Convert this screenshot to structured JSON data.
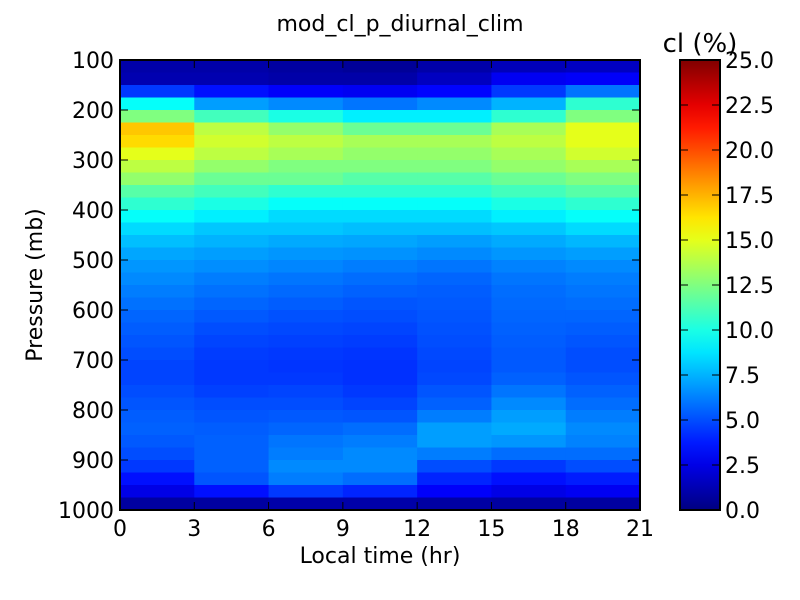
{
  "chart_data": {
    "type": "heatmap",
    "title": "mod_cl_p_diurnal_clim",
    "xlabel": "Local time (hr)",
    "ylabel": "Pressure (mb)",
    "x": [
      0,
      3,
      6,
      9,
      12,
      15,
      18
    ],
    "x_ticks": [
      0,
      3,
      6,
      9,
      12,
      15,
      18,
      21
    ],
    "xlim": [
      0,
      21
    ],
    "ylim": [
      1000,
      100
    ],
    "y_ticks": [
      100,
      200,
      300,
      400,
      500,
      600,
      700,
      800,
      900,
      1000
    ],
    "pressure_levels": [
      100,
      125,
      150,
      175,
      200,
      225,
      250,
      275,
      300,
      325,
      350,
      375,
      400,
      425,
      450,
      475,
      500,
      525,
      550,
      575,
      600,
      625,
      650,
      675,
      700,
      725,
      750,
      775,
      800,
      825,
      850,
      875,
      900,
      925,
      950,
      975
    ],
    "colormap": "jet",
    "colorbar": {
      "label": "cl (%)",
      "range": [
        0,
        25
      ],
      "ticks": [
        "0.0",
        "2.5",
        "5.0",
        "7.5",
        "10.0",
        "12.5",
        "15.0",
        "17.5",
        "20.0",
        "22.5",
        "25.0"
      ]
    },
    "values": [
      [
        1.0,
        1.0,
        0.8,
        0.6,
        1.0,
        1.4,
        1.6
      ],
      [
        1.2,
        1.2,
        1.0,
        1.0,
        1.6,
        2.8,
        3.0
      ],
      [
        4.5,
        3.5,
        3.0,
        2.8,
        3.2,
        4.5,
        6.0
      ],
      [
        9.5,
        7.0,
        6.5,
        6.0,
        6.5,
        7.5,
        10.5
      ],
      [
        12.5,
        11.0,
        10.0,
        9.0,
        9.0,
        10.5,
        12.5
      ],
      [
        17.0,
        14.0,
        13.0,
        12.0,
        12.0,
        13.5,
        15.0
      ],
      [
        16.5,
        14.5,
        14.0,
        13.5,
        13.5,
        14.0,
        15.0
      ],
      [
        15.0,
        14.0,
        13.5,
        13.0,
        13.0,
        13.5,
        14.5
      ],
      [
        14.0,
        13.0,
        12.5,
        12.5,
        12.5,
        13.0,
        13.5
      ],
      [
        13.0,
        12.0,
        12.0,
        11.5,
        11.5,
        12.0,
        12.5
      ],
      [
        11.5,
        11.0,
        10.5,
        10.5,
        10.5,
        11.0,
        11.5
      ],
      [
        10.5,
        10.0,
        9.5,
        9.5,
        9.5,
        10.0,
        10.5
      ],
      [
        9.5,
        9.0,
        8.5,
        8.5,
        8.5,
        9.0,
        9.5
      ],
      [
        8.5,
        8.0,
        8.0,
        7.8,
        7.8,
        8.0,
        8.5
      ],
      [
        7.8,
        7.5,
        7.3,
        7.2,
        7.0,
        7.3,
        7.6
      ],
      [
        7.2,
        7.0,
        6.8,
        6.7,
        6.5,
        6.8,
        7.0
      ],
      [
        6.8,
        6.6,
        6.4,
        6.2,
        6.0,
        6.3,
        6.5
      ],
      [
        6.5,
        6.2,
        6.0,
        5.8,
        5.6,
        6.0,
        6.2
      ],
      [
        6.2,
        5.9,
        5.7,
        5.5,
        5.4,
        5.8,
        6.0
      ],
      [
        5.9,
        5.6,
        5.4,
        5.2,
        5.3,
        5.7,
        5.8
      ],
      [
        5.6,
        5.3,
        5.1,
        5.0,
        5.2,
        5.6,
        5.6
      ],
      [
        5.4,
        5.0,
        4.9,
        4.8,
        5.1,
        5.5,
        5.4
      ],
      [
        5.2,
        4.8,
        4.7,
        4.6,
        5.0,
        5.4,
        5.2
      ],
      [
        5.0,
        4.6,
        4.5,
        4.4,
        4.9,
        5.3,
        5.0
      ],
      [
        4.8,
        4.5,
        4.4,
        4.3,
        4.8,
        5.3,
        5.0
      ],
      [
        4.8,
        4.5,
        4.5,
        4.3,
        4.9,
        5.5,
        5.2
      ],
      [
        5.0,
        4.7,
        4.8,
        4.5,
        5.2,
        6.0,
        5.5
      ],
      [
        5.2,
        5.0,
        5.0,
        4.8,
        5.5,
        6.5,
        5.8
      ],
      [
        5.4,
        5.2,
        5.3,
        5.2,
        6.2,
        7.0,
        6.2
      ],
      [
        5.5,
        5.4,
        5.6,
        5.8,
        7.0,
        7.3,
        6.5
      ],
      [
        5.3,
        5.5,
        6.0,
        6.2,
        7.0,
        6.8,
        6.3
      ],
      [
        5.0,
        5.5,
        6.2,
        6.5,
        6.2,
        5.8,
        5.8
      ],
      [
        4.5,
        5.5,
        6.5,
        6.5,
        5.0,
        4.5,
        5.0
      ],
      [
        3.5,
        5.2,
        6.2,
        5.8,
        4.0,
        3.5,
        3.8
      ],
      [
        2.5,
        3.5,
        4.5,
        4.0,
        3.0,
        2.5,
        2.8
      ],
      [
        0.8,
        0.8,
        1.0,
        1.0,
        0.9,
        0.8,
        0.8
      ]
    ]
  }
}
